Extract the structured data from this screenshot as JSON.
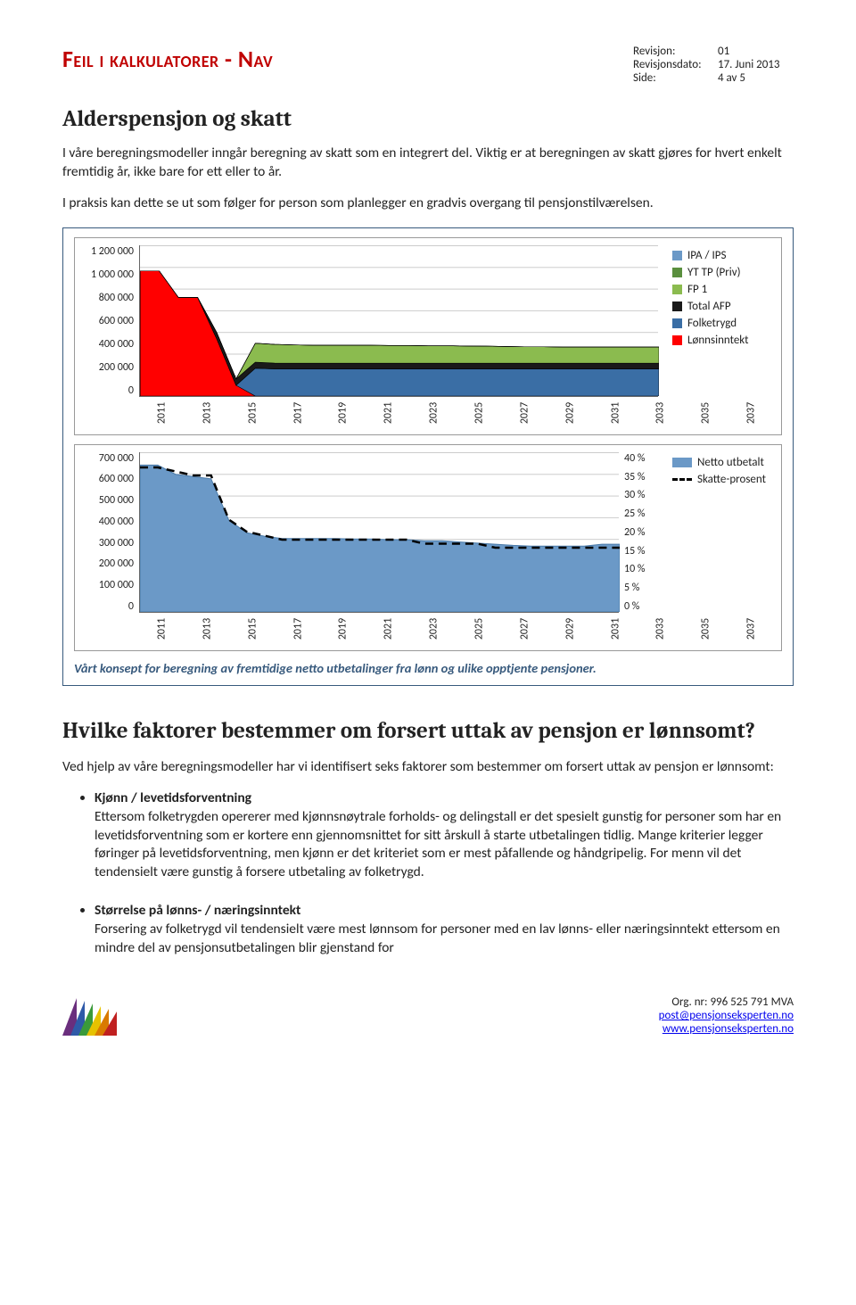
{
  "header": {
    "title": "Feil i kalkulatorer - Nav",
    "meta": [
      {
        "key": "Revisjon:",
        "val": "01"
      },
      {
        "key": "Revisjonsdato:",
        "val": "17. Juni 2013"
      },
      {
        "key": "Side:",
        "val": "4 av 5"
      }
    ]
  },
  "section1": {
    "heading": "Alderspensjon og skatt",
    "p1": "I våre beregningsmodeller inngår beregning av skatt som en integrert del. Viktig er at beregningen av skatt gjøres for hvert enkelt fremtidig år, ikke bare for ett eller to år.",
    "p2": "I praksis kan dette se ut som følger for person som planlegger en gradvis overgang til pensjonstilværelsen."
  },
  "chart1": {
    "type": "stacked-area",
    "years": [
      "2011",
      "2013",
      "2015",
      "2017",
      "2019",
      "2021",
      "2023",
      "2025",
      "2027",
      "2029",
      "2031",
      "2033",
      "2035",
      "2037"
    ],
    "ylim": [
      0,
      1200000
    ],
    "ytick_step": 200000,
    "yticks": [
      "1 200 000",
      "1 000 000",
      "800 000",
      "600 000",
      "400 000",
      "200 000",
      "0"
    ],
    "series": [
      {
        "name": "Lønnsinntekt",
        "color": "#ff0000",
        "values": [
          990000,
          990000,
          780000,
          780000,
          450000,
          85000,
          0,
          0,
          0,
          0,
          0,
          0,
          0,
          0,
          0,
          0,
          0,
          0,
          0,
          0,
          0,
          0,
          0,
          0,
          0,
          0,
          0,
          0
        ]
      },
      {
        "name": "Folketrygd",
        "color": "#3a6ea5",
        "values": [
          0,
          0,
          0,
          0,
          0,
          0,
          220000,
          215000,
          215000,
          215000,
          215000,
          215000,
          215000,
          215000,
          215000,
          215000,
          215000,
          215000,
          215000,
          215000,
          215000,
          215000,
          215000,
          215000,
          215000,
          215000,
          215000,
          215000
        ]
      },
      {
        "name": "Total AFP",
        "color": "#1a1a1a",
        "values": [
          0,
          0,
          0,
          0,
          50000,
          50000,
          48000,
          46000,
          45000,
          45000,
          45000,
          45000,
          45000,
          45000,
          45000,
          45000,
          45000,
          45000,
          45000,
          45000,
          45000,
          45000,
          45000,
          45000,
          45000,
          45000,
          45000,
          45000
        ]
      },
      {
        "name": "FP 1",
        "color": "#8bbb4f",
        "values": [
          0,
          0,
          0,
          0,
          0,
          0,
          150000,
          148000,
          145000,
          142000,
          142000,
          142000,
          142000,
          140000,
          140000,
          138000,
          138000,
          136000,
          135000,
          132000,
          130000,
          130000,
          128000,
          128000,
          128000,
          128000,
          128000,
          128000
        ]
      },
      {
        "name": "YT TP (Priv)",
        "color": "#5a8f3e",
        "values": [
          0,
          0,
          0,
          0,
          0,
          0,
          0,
          0,
          0,
          0,
          0,
          0,
          0,
          0,
          0,
          0,
          0,
          0,
          0,
          0,
          0,
          0,
          0,
          0,
          0,
          0,
          0,
          0
        ]
      },
      {
        "name": "IPA / IPS",
        "color": "#6b99c7",
        "values": [
          0,
          0,
          0,
          0,
          0,
          0,
          0,
          0,
          0,
          0,
          0,
          0,
          0,
          0,
          0,
          0,
          0,
          0,
          0,
          0,
          0,
          0,
          0,
          0,
          0,
          0,
          0,
          0
        ]
      }
    ],
    "legend": [
      {
        "label": "IPA / IPS",
        "color": "#6b99c7"
      },
      {
        "label": "YT TP (Priv)",
        "color": "#5a8f3e"
      },
      {
        "label": "FP 1",
        "color": "#8bbb4f"
      },
      {
        "label": "Total AFP",
        "color": "#1a1a1a"
      },
      {
        "label": "Folketrygd",
        "color": "#3a6ea5"
      },
      {
        "label": "Lønnsinntekt",
        "color": "#ff0000"
      }
    ]
  },
  "chart2": {
    "type": "area-line-dual-axis",
    "years": [
      "2011",
      "2013",
      "2015",
      "2017",
      "2019",
      "2021",
      "2023",
      "2025",
      "2027",
      "2029",
      "2031",
      "2033",
      "2035",
      "2037"
    ],
    "y1_lim": [
      0,
      700000
    ],
    "y1_step": 100000,
    "y1_ticks": [
      "700 000",
      "600 000",
      "500 000",
      "400 000",
      "300 000",
      "200 000",
      "100 000",
      "0"
    ],
    "y2_lim": [
      0,
      40
    ],
    "y2_step": 5,
    "y2_ticks": [
      "40 %",
      "35 %",
      "30 %",
      "25 %",
      "20 %",
      "15 %",
      "10 %",
      "5 %",
      "0 %"
    ],
    "area": {
      "color": "#6b99c7",
      "values": [
        640000,
        640000,
        600000,
        590000,
        580000,
        400000,
        345000,
        330000,
        320000,
        320000,
        320000,
        320000,
        318000,
        318000,
        315000,
        315000,
        310000,
        310000,
        305000,
        300000,
        295000,
        290000,
        287000,
        287000,
        287000,
        287000,
        295000,
        295000
      ]
    },
    "line": {
      "color": "#000",
      "dash": true,
      "values": [
        36,
        36,
        35,
        34,
        34,
        23,
        20,
        19,
        18,
        18,
        18,
        18,
        18,
        18,
        18,
        18,
        17,
        17,
        17,
        17,
        16,
        16,
        16,
        16,
        16,
        16,
        16,
        16
      ]
    },
    "legend": [
      {
        "label": "Netto utbetalt",
        "type": "solid",
        "color": "#6b99c7"
      },
      {
        "label": "Skatte-prosent",
        "type": "dash",
        "color": "#000"
      }
    ],
    "caption": "Vårt konsept for beregning av fremtidige netto utbetalinger fra lønn og ulike opptjente pensjoner."
  },
  "section2": {
    "heading": "Hvilke faktorer bestemmer om forsert uttak av pensjon er lønnsomt?",
    "intro": "Ved hjelp av våre beregningsmodeller har vi identifisert seks faktorer som bestemmer om forsert uttak av pensjon er lønnsomt:",
    "factors": [
      {
        "title": "Kjønn / levetidsforventning",
        "body": "Ettersom folketrygden opererer med kjønnsnøytrale forholds- og delingstall er det spesielt gunstig for personer som har en levetidsforventning som er kortere enn gjennomsnittet for sitt årskull å starte utbetalingen tidlig. Mange kriterier legger føringer på levetidsforventning, men kjønn er det kriteriet som er mest påfallende og håndgripelig. For menn vil det tendensielt være gunstig å forsere utbetaling av folketrygd."
      },
      {
        "title": "Størrelse på lønns- / næringsinntekt",
        "body": "Forsering av folketrygd vil tendensielt være mest lønnsom for personer med en lav lønns- eller næringsinntekt ettersom en mindre del av pensjonsutbetalingen blir gjenstand for"
      }
    ]
  },
  "footer": {
    "org": "Org. nr: 996 525 791 MVA",
    "email": "post@pensjonseksperten.no",
    "web": "www.pensjonseksperten.no",
    "logo_colors": [
      "#6a2e7d",
      "#2f5aa8",
      "#3a9a3a",
      "#e6c200",
      "#d97a00",
      "#c02020"
    ]
  }
}
